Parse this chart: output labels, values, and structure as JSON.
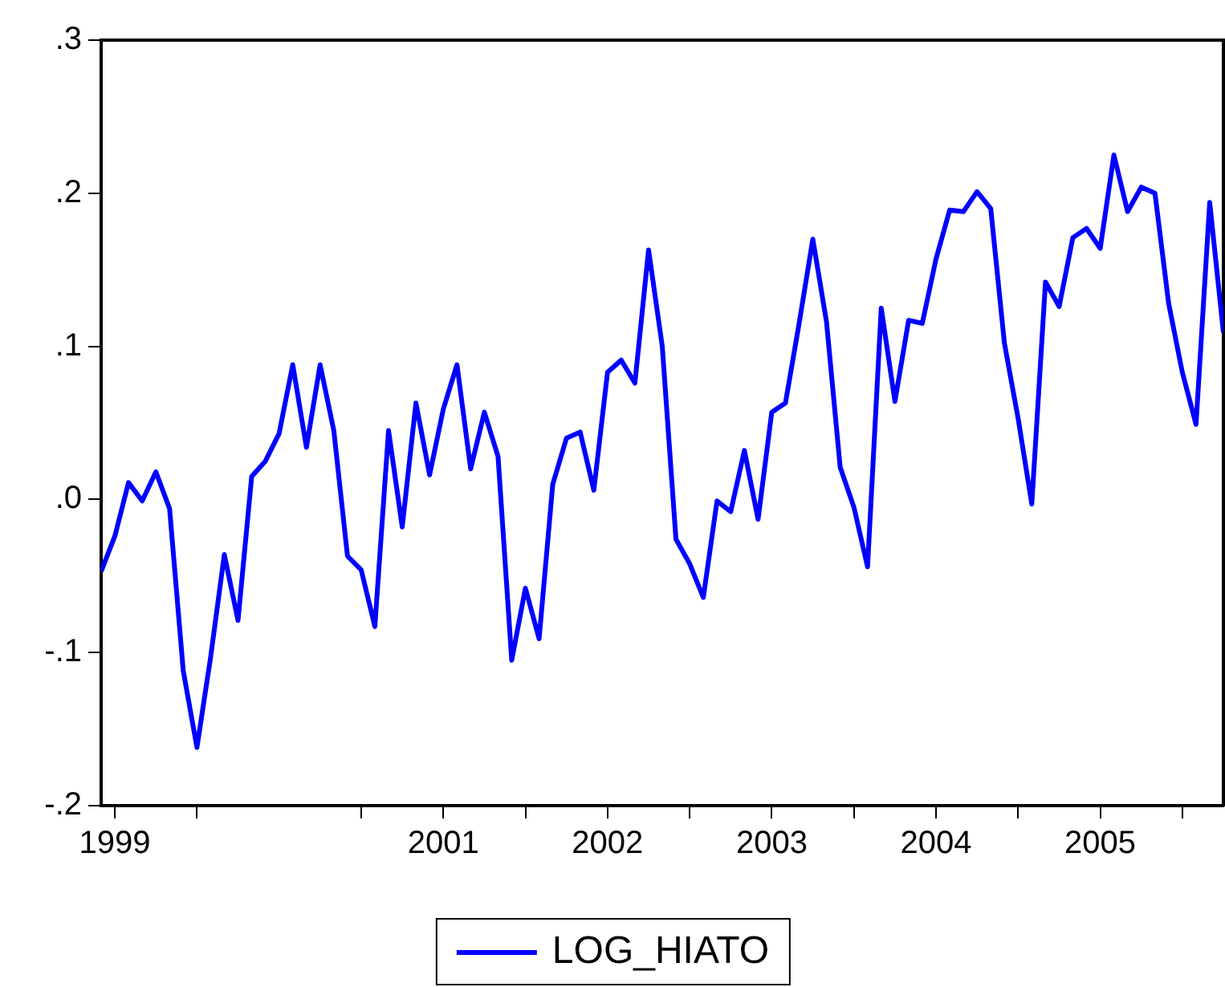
{
  "chart_data": {
    "type": "line",
    "x": [
      "1999-06",
      "1999-07",
      "1999-08",
      "1999-09",
      "1999-10",
      "1999-11",
      "1999-12",
      "2000-01",
      "2000-02",
      "2000-03",
      "2000-04",
      "2000-05",
      "2000-06",
      "2000-07",
      "2000-08",
      "2000-09",
      "2000-10",
      "2000-11",
      "2000-12",
      "2001-01",
      "2001-02",
      "2001-03",
      "2001-04",
      "2001-05",
      "2001-06",
      "2001-07",
      "2001-08",
      "2001-09",
      "2001-10",
      "2001-11",
      "2001-12",
      "2002-01",
      "2002-02",
      "2002-03",
      "2002-04",
      "2002-05",
      "2002-06",
      "2002-07",
      "2002-08",
      "2002-09",
      "2002-10",
      "2002-11",
      "2002-12",
      "2003-01",
      "2003-02",
      "2003-03",
      "2003-04",
      "2003-05",
      "2003-06",
      "2003-07",
      "2003-08",
      "2003-09",
      "2003-10",
      "2003-11",
      "2003-12",
      "2004-01",
      "2004-02",
      "2004-03",
      "2004-04",
      "2004-05",
      "2004-06",
      "2004-07",
      "2004-08",
      "2004-09",
      "2004-10",
      "2004-11",
      "2004-12",
      "2005-01",
      "2005-02",
      "2005-03",
      "2005-04",
      "2005-05",
      "2005-06",
      "2005-07",
      "2005-08",
      "2005-09",
      "2005-10",
      "2005-11",
      "2005-12",
      "2006-01",
      "2006-02",
      "2006-03",
      "2006-04"
    ],
    "series": [
      {
        "name": "LOG_HIATO",
        "color": "#0000ff",
        "values": [
          -0.047,
          -0.024,
          0.011,
          -0.001,
          0.018,
          -0.006,
          -0.112,
          -0.162,
          -0.103,
          -0.036,
          -0.079,
          0.015,
          0.025,
          0.043,
          0.088,
          0.034,
          0.088,
          0.045,
          -0.037,
          -0.046,
          -0.083,
          0.045,
          -0.018,
          0.063,
          0.016,
          0.059,
          0.088,
          0.02,
          0.057,
          0.028,
          -0.105,
          -0.058,
          -0.091,
          0.01,
          0.04,
          0.044,
          0.006,
          0.083,
          0.091,
          0.076,
          0.163,
          0.1,
          -0.026,
          -0.042,
          -0.064,
          -0.001,
          -0.008,
          0.032,
          -0.013,
          0.057,
          0.063,
          0.115,
          0.17,
          0.116,
          0.021,
          -0.005,
          -0.044,
          0.125,
          0.064,
          0.117,
          0.115,
          0.157,
          0.189,
          0.188,
          0.201,
          0.19,
          0.102,
          0.053,
          -0.003,
          0.142,
          0.126,
          0.171,
          0.177,
          0.164,
          0.225,
          0.188,
          0.204,
          0.2,
          0.128,
          0.083,
          0.049,
          0.194,
          0.109
        ]
      }
    ],
    "xlim": [
      "1999-06",
      "2006-04"
    ],
    "xticks": [
      {
        "value": "1999-07",
        "label": "1999"
      },
      {
        "value": "2000-01",
        "label": null
      },
      {
        "value": "2001-01",
        "label": null
      },
      {
        "value": "2001-07",
        "label": "2001"
      },
      {
        "value": "2002-01",
        "label": null
      },
      {
        "value": "2002-07",
        "label": "2002"
      },
      {
        "value": "2003-01",
        "label": null
      },
      {
        "value": "2003-07",
        "label": "2003"
      },
      {
        "value": "2004-01",
        "label": null
      },
      {
        "value": "2004-07",
        "label": "2004"
      },
      {
        "value": "2005-01",
        "label": null
      },
      {
        "value": "2005-07",
        "label": "2005"
      },
      {
        "value": "2006-01",
        "label": null
      }
    ],
    "ylim": [
      -0.2,
      0.3
    ],
    "yticks": [
      {
        "value": -0.2,
        "label": "-.2"
      },
      {
        "value": -0.1,
        "label": "-.1"
      },
      {
        "value": 0,
        "label": ".0"
      },
      {
        "value": 0.1,
        "label": ".1"
      },
      {
        "value": 0.2,
        "label": ".2"
      },
      {
        "value": 0.3,
        "label": ".3"
      }
    ],
    "grid": false,
    "legend": "bottom",
    "marker": "none",
    "line_style": "solid"
  }
}
